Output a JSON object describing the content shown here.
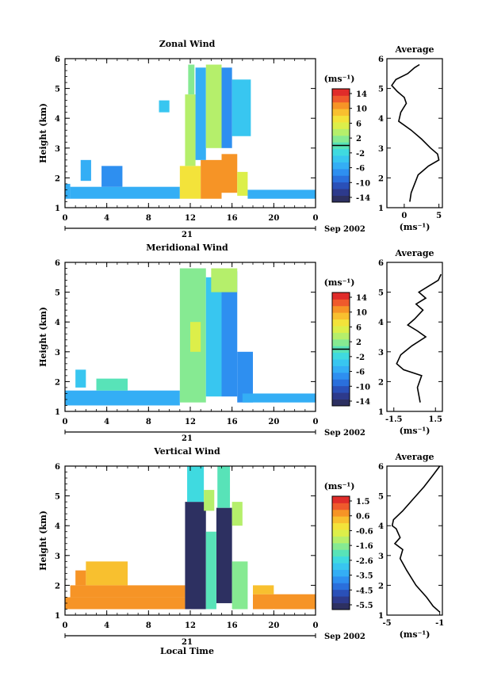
{
  "chart_data": [
    {
      "type": "heatmap",
      "title": "Zonal Wind",
      "xlabel": "",
      "ylabel": "Height (km)",
      "x_ticks": [
        "0",
        "4",
        "8",
        "12",
        "16",
        "20",
        "0"
      ],
      "y_ticks": [
        "1",
        "2",
        "3",
        "4",
        "5",
        "6"
      ],
      "xlim": [
        0,
        24
      ],
      "ylim": [
        1,
        6
      ],
      "day_label": "21",
      "date_label": "Sep 2002",
      "colorbar": {
        "unit": "(ms⁻¹)",
        "tick_labels": [
          "14",
          "10",
          "6",
          "2",
          "-2",
          "-6",
          "-10",
          "-14"
        ],
        "range": [
          -16,
          16
        ],
        "zero_line": 0
      },
      "cells": [
        {
          "x": [
            0,
            0.5
          ],
          "y": [
            1.3,
            1.8
          ],
          "v": -6
        },
        {
          "x": [
            0.5,
            11
          ],
          "y": [
            1.3,
            1.7
          ],
          "v": -6
        },
        {
          "x": [
            3.5,
            5.5
          ],
          "y": [
            1.7,
            2.4
          ],
          "v": -8
        },
        {
          "x": [
            1.5,
            2.5
          ],
          "y": [
            1.9,
            2.6
          ],
          "v": -5
        },
        {
          "x": [
            11,
            13
          ],
          "y": [
            1.3,
            2.4
          ],
          "v": 8
        },
        {
          "x": [
            13,
            15
          ],
          "y": [
            1.3,
            2.6
          ],
          "v": 12
        },
        {
          "x": [
            15,
            16.5
          ],
          "y": [
            1.5,
            2.8
          ],
          "v": 11
        },
        {
          "x": [
            16.5,
            17.5
          ],
          "y": [
            1.4,
            2.2
          ],
          "v": 6
        },
        {
          "x": [
            11.5,
            12.5
          ],
          "y": [
            2.4,
            4.8
          ],
          "v": 4
        },
        {
          "x": [
            12.5,
            13.5
          ],
          "y": [
            2.6,
            5.7
          ],
          "v": -6
        },
        {
          "x": [
            13.5,
            15
          ],
          "y": [
            3.0,
            5.8
          ],
          "v": 3
        },
        {
          "x": [
            15,
            16
          ],
          "y": [
            3.0,
            5.7
          ],
          "v": -7
        },
        {
          "x": [
            11.8,
            12.4
          ],
          "y": [
            4.8,
            5.8
          ],
          "v": 2
        },
        {
          "x": [
            16,
            17.8
          ],
          "y": [
            3.4,
            5.3
          ],
          "v": -4
        },
        {
          "x": [
            17.5,
            24
          ],
          "y": [
            1.3,
            1.6
          ],
          "v": -5
        },
        {
          "x": [
            9,
            10
          ],
          "y": [
            4.2,
            4.6
          ],
          "v": -3
        }
      ],
      "profile": {
        "title": "Average",
        "xlabel": "(ms⁻¹)",
        "x_ticks": [
          "0",
          "5"
        ],
        "xlim": [
          -2.5,
          5.5
        ],
        "x": [
          0.8,
          1.0,
          1.5,
          2.0,
          3.5,
          5.0,
          4.8,
          3.8,
          2.5,
          1.0,
          -0.8,
          -0.5,
          0.3,
          0.0,
          -1.0,
          -1.8,
          -1.2,
          0.5,
          1.5,
          2.2
        ],
        "y": [
          1.2,
          1.5,
          1.8,
          2.1,
          2.4,
          2.6,
          2.8,
          3.0,
          3.3,
          3.6,
          3.9,
          4.2,
          4.5,
          4.7,
          4.9,
          5.1,
          5.3,
          5.5,
          5.7,
          5.8
        ]
      }
    },
    {
      "type": "heatmap",
      "title": "Meridional Wind",
      "xlabel": "",
      "ylabel": "Height (km)",
      "x_ticks": [
        "0",
        "4",
        "8",
        "12",
        "16",
        "20",
        "0"
      ],
      "y_ticks": [
        "1",
        "2",
        "3",
        "4",
        "5",
        "6"
      ],
      "xlim": [
        0,
        24
      ],
      "ylim": [
        1,
        6
      ],
      "day_label": "21",
      "date_label": "Sep 2002",
      "colorbar": {
        "unit": "(ms⁻¹)",
        "tick_labels": [
          "14",
          "10",
          "6",
          "2",
          "-2",
          "-6",
          "-10",
          "-14"
        ],
        "range": [
          -16,
          16
        ],
        "zero_line": 0
      },
      "cells": [
        {
          "x": [
            0,
            11
          ],
          "y": [
            1.2,
            1.7
          ],
          "v": -5
        },
        {
          "x": [
            3,
            6
          ],
          "y": [
            1.7,
            2.1
          ],
          "v": 0
        },
        {
          "x": [
            1,
            2
          ],
          "y": [
            1.8,
            2.4
          ],
          "v": -3
        },
        {
          "x": [
            11,
            13.5
          ],
          "y": [
            1.3,
            5.8
          ],
          "v": 1
        },
        {
          "x": [
            13.5,
            15
          ],
          "y": [
            1.5,
            5.5
          ],
          "v": -4
        },
        {
          "x": [
            15,
            16.5
          ],
          "y": [
            1.5,
            5.7
          ],
          "v": -8
        },
        {
          "x": [
            16.5,
            18
          ],
          "y": [
            1.3,
            3.0
          ],
          "v": -7
        },
        {
          "x": [
            17,
            24
          ],
          "y": [
            1.3,
            1.6
          ],
          "v": -5
        },
        {
          "x": [
            14,
            16.5
          ],
          "y": [
            5.0,
            5.8
          ],
          "v": 3
        },
        {
          "x": [
            12,
            13
          ],
          "y": [
            3.0,
            4.0
          ],
          "v": 5
        }
      ],
      "profile": {
        "title": "Average",
        "xlabel": "(ms⁻¹)",
        "x_ticks": [
          "-1.5",
          "1.5"
        ],
        "xlim": [
          -2.0,
          2.0
        ],
        "x": [
          0.4,
          0.2,
          0.5,
          -0.8,
          -1.3,
          -1.0,
          -0.2,
          0.8,
          0.2,
          -0.5,
          0.0,
          0.6,
          0.1,
          0.8,
          0.3,
          1.0,
          1.7,
          1.9
        ],
        "y": [
          1.3,
          1.8,
          2.2,
          2.4,
          2.6,
          2.9,
          3.2,
          3.5,
          3.7,
          3.9,
          4.1,
          4.4,
          4.6,
          4.8,
          5.0,
          5.2,
          5.4,
          5.6
        ]
      }
    },
    {
      "type": "heatmap",
      "title": "Vertical Wind",
      "xlabel": "Local Time",
      "ylabel": "Height (km)",
      "x_ticks": [
        "0",
        "4",
        "8",
        "12",
        "16",
        "20",
        "0"
      ],
      "y_ticks": [
        "1",
        "2",
        "3",
        "4",
        "5",
        "6"
      ],
      "xlim": [
        0,
        24
      ],
      "ylim": [
        1,
        6
      ],
      "day_label": "21",
      "date_label": "Sep 2002",
      "colorbar": {
        "unit": "(ms⁻¹)",
        "tick_labels": [
          "1.5",
          "0.6",
          "-0.6",
          "-1.6",
          "-2.6",
          "-3.5",
          "-4.5",
          "-5.5"
        ],
        "range": [
          -6,
          2
        ],
        "zero_line": null
      },
      "cells": [
        {
          "x": [
            0,
            11.5
          ],
          "y": [
            1.2,
            1.6
          ],
          "v": 1.0
        },
        {
          "x": [
            0.5,
            11.5
          ],
          "y": [
            1.6,
            2.0
          ],
          "v": 0.7
        },
        {
          "x": [
            2,
            6
          ],
          "y": [
            2.0,
            2.8
          ],
          "v": 0.3
        },
        {
          "x": [
            1,
            2
          ],
          "y": [
            2.0,
            2.5
          ],
          "v": 0.6
        },
        {
          "x": [
            11.5,
            13.5
          ],
          "y": [
            1.2,
            4.8
          ],
          "v": -5.8
        },
        {
          "x": [
            14.5,
            16
          ],
          "y": [
            1.4,
            4.6
          ],
          "v": -5.8
        },
        {
          "x": [
            13.5,
            14.5
          ],
          "y": [
            1.2,
            3.8
          ],
          "v": -2.0
        },
        {
          "x": [
            16,
            17.5
          ],
          "y": [
            1.2,
            2.8
          ],
          "v": -1.5
        },
        {
          "x": [
            11.7,
            13.3
          ],
          "y": [
            4.8,
            6.0
          ],
          "v": -2.4
        },
        {
          "x": [
            14.6,
            15.8
          ],
          "y": [
            4.6,
            6.0
          ],
          "v": -2.0
        },
        {
          "x": [
            13.3,
            14.3
          ],
          "y": [
            4.5,
            5.2
          ],
          "v": -1.2
        },
        {
          "x": [
            18,
            24
          ],
          "y": [
            1.2,
            1.7
          ],
          "v": 1.0
        },
        {
          "x": [
            16,
            17
          ],
          "y": [
            4.0,
            4.8
          ],
          "v": -1.0
        },
        {
          "x": [
            18,
            20
          ],
          "y": [
            1.7,
            2.0
          ],
          "v": 0.5
        }
      ],
      "profile": {
        "title": "Average",
        "xlabel": "(ms⁻¹)",
        "x_ticks": [
          "-5",
          "-1"
        ],
        "xlim": [
          -5.0,
          -0.8
        ],
        "x": [
          -1.0,
          -1.5,
          -2.0,
          -2.8,
          -3.5,
          -4.0,
          -3.8,
          -4.4,
          -4.0,
          -4.3,
          -4.6,
          -4.5,
          -3.8,
          -3.0,
          -2.2,
          -1.5,
          -1.0
        ],
        "y": [
          1.1,
          1.3,
          1.6,
          2.0,
          2.5,
          2.9,
          3.2,
          3.4,
          3.6,
          3.9,
          4.0,
          4.2,
          4.5,
          4.9,
          5.3,
          5.7,
          6.0
        ]
      }
    }
  ]
}
